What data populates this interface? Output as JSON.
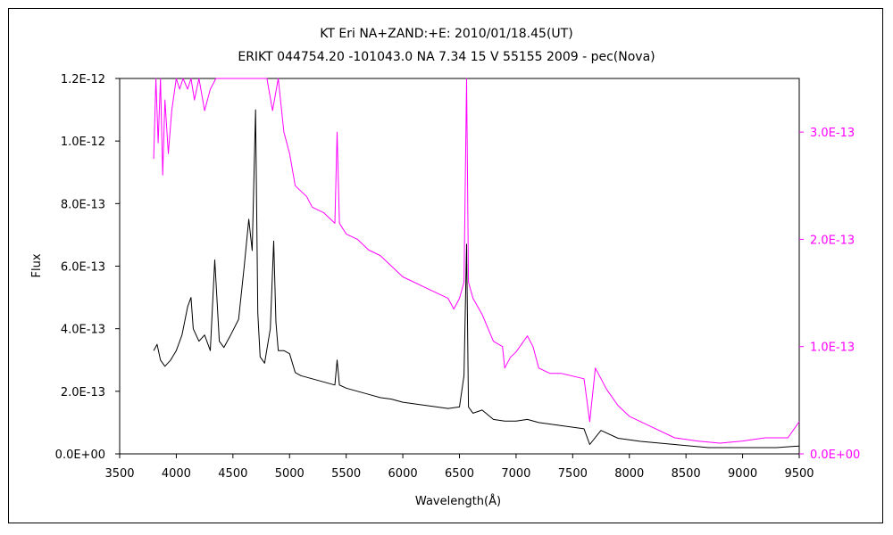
{
  "chart_data": {
    "type": "line",
    "title": "KT Eri    NA+ZAND:+E:   2010/01/18.45(UT)",
    "subtitle": "ERIKT 044754.20 -101043.0 NA 7.34 15 V 55155 2009 - pec(Nova)",
    "xlabel": "Wavelength(Å)",
    "ylabel": "Flux",
    "xlim": [
      3500,
      9500
    ],
    "ylim": [
      0,
      1.2e-12
    ],
    "y2lim": [
      0,
      3.5e-13
    ],
    "xticks": [
      "3500",
      "4000",
      "4500",
      "5000",
      "5500",
      "6000",
      "6500",
      "7000",
      "7500",
      "8000",
      "8500",
      "9000",
      "9500"
    ],
    "yticks": [
      "0.0E+00",
      "2.0E-13",
      "4.0E-13",
      "6.0E-13",
      "8.0E-13",
      "1.0E-12",
      "1.2E-12"
    ],
    "y2ticks": [
      "0.0E+00",
      "1.0E-13",
      "2.0E-13",
      "3.0E-13"
    ],
    "grid": false,
    "series": [
      {
        "color": "#000000",
        "axis": "left",
        "x": [
          3800,
          3830,
          3860,
          3900,
          3950,
          4000,
          4050,
          4100,
          4130,
          4150,
          4200,
          4250,
          4300,
          4340,
          4380,
          4420,
          4480,
          4550,
          4600,
          4640,
          4670,
          4700,
          4720,
          4740,
          4780,
          4830,
          4860,
          4880,
          4900,
          4950,
          5000,
          5050,
          5100,
          5200,
          5300,
          5400,
          5420,
          5440,
          5500,
          5600,
          5700,
          5800,
          5900,
          6000,
          6200,
          6400,
          6500,
          6540,
          6563,
          6580,
          6620,
          6700,
          6800,
          6900,
          7000,
          7100,
          7200,
          7400,
          7600,
          7650,
          7750,
          7900,
          8100,
          8400,
          8700,
          9000,
          9300,
          9500
        ],
        "values": [
          3.3e-13,
          3.5e-13,
          3e-13,
          2.8e-13,
          3e-13,
          3.3e-13,
          3.8e-13,
          4.7e-13,
          5e-13,
          4e-13,
          3.6e-13,
          3.8e-13,
          3.3e-13,
          6.2e-13,
          3.6e-13,
          3.4e-13,
          3.8e-13,
          4.3e-13,
          6e-13,
          7.5e-13,
          6.5e-13,
          1.1e-12,
          4.5e-13,
          3.1e-13,
          2.9e-13,
          4e-13,
          6.8e-13,
          4.2e-13,
          3.3e-13,
          3.3e-13,
          3.2e-13,
          2.6e-13,
          2.5e-13,
          2.4e-13,
          2.3e-13,
          2.2e-13,
          3e-13,
          2.2e-13,
          2.1e-13,
          2e-13,
          1.9e-13,
          1.8e-13,
          1.75e-13,
          1.65e-13,
          1.55e-13,
          1.45e-13,
          1.5e-13,
          2.5e-13,
          6.7e-13,
          1.5e-13,
          1.3e-13,
          1.4e-13,
          1.1e-13,
          1.05e-13,
          1.05e-13,
          1.1e-13,
          1e-13,
          9e-14,
          8e-14,
          3e-14,
          7.5e-14,
          5e-14,
          4e-14,
          3e-14,
          2e-14,
          2e-14,
          2e-14,
          2.5e-14
        ]
      },
      {
        "color": "#ff00ff",
        "axis": "right",
        "x": [
          3800,
          3820,
          3840,
          3860,
          3880,
          3900,
          3930,
          3960,
          4000,
          4030,
          4060,
          4100,
          4130,
          4160,
          4200,
          4250,
          4300,
          4350,
          4400,
          4450,
          4500,
          4600,
          4700,
          4750,
          4780,
          4800,
          4850,
          4900,
          4950,
          5000,
          5050,
          5100,
          5150,
          5200,
          5300,
          5400,
          5420,
          5440,
          5500,
          5600,
          5700,
          5800,
          5900,
          6000,
          6200,
          6400,
          6450,
          6500,
          6540,
          6563,
          6580,
          6620,
          6700,
          6800,
          6880,
          6900,
          6950,
          7000,
          7100,
          7150,
          7200,
          7300,
          7400,
          7600,
          7650,
          7700,
          7800,
          7900,
          8000,
          8200,
          8400,
          8600,
          8800,
          9000,
          9200,
          9400,
          9500
        ],
        "values": [
          2.75e-13,
          3.6e-13,
          2.9e-13,
          3.5e-13,
          2.6e-13,
          3.3e-13,
          2.8e-13,
          3.2e-13,
          3.6e-13,
          3.4e-13,
          3.7e-13,
          3.4e-13,
          3.6e-13,
          3.3e-13,
          3.6e-13,
          3.2e-13,
          3.4e-13,
          3.5e-13,
          3.6e-13,
          3.8e-13,
          3.9e-13,
          4.1e-13,
          4.3e-13,
          4e-13,
          3.6e-13,
          3.8e-13,
          3.2e-13,
          3.5e-13,
          3e-13,
          2.8e-13,
          2.5e-13,
          2.45e-13,
          2.4e-13,
          2.3e-13,
          2.25e-13,
          2.15e-13,
          3e-13,
          2.15e-13,
          2.05e-13,
          2e-13,
          1.9e-13,
          1.85e-13,
          1.75e-13,
          1.65e-13,
          1.55e-13,
          1.45e-13,
          1.35e-13,
          1.45e-13,
          1.6e-13,
          4.6e-13,
          1.6e-13,
          1.45e-13,
          1.3e-13,
          1.05e-13,
          1e-13,
          8e-14,
          9e-14,
          9.5e-14,
          1.1e-13,
          1e-13,
          8e-14,
          7.5e-14,
          7.5e-14,
          7e-14,
          3e-14,
          8e-14,
          6e-14,
          4.5e-14,
          3.5e-14,
          2.5e-14,
          1.5e-14,
          1.2e-14,
          1e-14,
          1.2e-14,
          1.5e-14,
          1.5e-14,
          3e-14
        ]
      }
    ],
    "colors": {
      "left_axis": "#000000",
      "right_axis": "#ff00ff"
    }
  }
}
